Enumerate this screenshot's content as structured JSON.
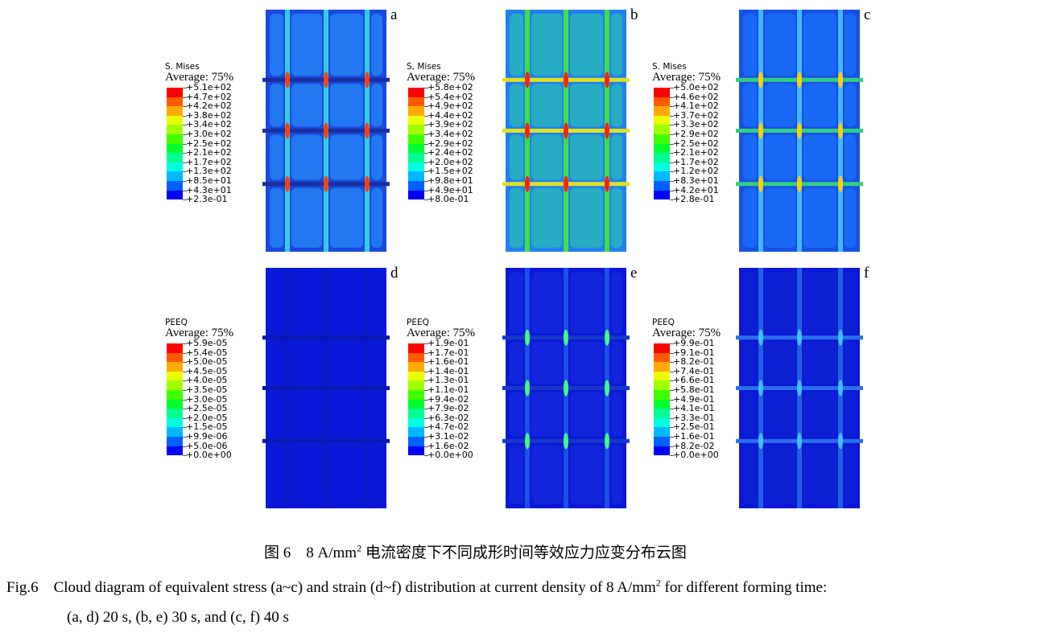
{
  "legend_colors": [
    "#ff0000",
    "#ff5a00",
    "#ffaa00",
    "#e8ff00",
    "#a0ff00",
    "#40ff00",
    "#00ff30",
    "#00ff90",
    "#00ffe0",
    "#00b8ff",
    "#0060ff",
    "#0000ff"
  ],
  "panels": [
    {
      "id": "a",
      "legend_title": "S. Mises",
      "average": "Average: 75%",
      "values": [
        "+5.1e+02",
        "+4.7e+02",
        "+4.2e+02",
        "+3.8e+02",
        "+3.4e+02",
        "+3.0e+02",
        "+2.5e+02",
        "+2.1e+02",
        "+1.7e+02",
        "+1.3e+02",
        "+8.5e+01",
        "+4.3e+01",
        "+2.3e-01"
      ]
    },
    {
      "id": "b",
      "legend_title": "S, Mises",
      "average": "Average: 75%",
      "values": [
        "+5.8e+02",
        "+5.4e+02",
        "+4.9e+02",
        "+4.4e+02",
        "+3.9e+02",
        "+3.4e+02",
        "+2.9e+02",
        "+2.4e+02",
        "+2.0e+02",
        "+1.5e+02",
        "+9.8e+01",
        "+4.9e+01",
        "+8.0e-01"
      ]
    },
    {
      "id": "c",
      "legend_title": "S. Mises",
      "average": "Average: 75%",
      "values": [
        "+5.0e+02",
        "+4.6e+02",
        "+4.1e+02",
        "+3.7e+02",
        "+3.3e+02",
        "+2.9e+02",
        "+2.5e+02",
        "+2.1e+02",
        "+1.7e+02",
        "+1.2e+02",
        "+8.3e+01",
        "+4.2e+01",
        "+2.8e-01"
      ]
    },
    {
      "id": "d",
      "legend_title": "PEEQ",
      "average": "Average: 75%",
      "values": [
        "+5.9e-05",
        "+5.4e-05",
        "+5.0e-05",
        "+4.5e-05",
        "+4.0e-05",
        "+3.5e-05",
        "+3.0e-05",
        "+2.5e-05",
        "+2.0e-05",
        "+1.5e-05",
        "+9.9e-06",
        "+5.0e-06",
        "+0.0e+00"
      ]
    },
    {
      "id": "e",
      "legend_title": "PEEQ",
      "average": "Average: 75%",
      "values": [
        "+1.9e-01",
        "+1.7e-01",
        "+1.6e-01",
        "+1.4e-01",
        "+1.3e-01",
        "+1.1e-01",
        "+9.4e-02",
        "+7.9e-02",
        "+6.3e-02",
        "+4.7e-02",
        "+3.1e-02",
        "+1.6e-02",
        "+0.0e+00"
      ]
    },
    {
      "id": "f",
      "legend_title": "PEEQ",
      "average": "Average: 75%",
      "values": [
        "+9.9e-01",
        "+9.1e-01",
        "+8.2e-01",
        "+7.4e-01",
        "+6.6e-01",
        "+5.8e-01",
        "+4.9e-01",
        "+4.1e-01",
        "+3.3e-01",
        "+2.5e-01",
        "+1.6e-01",
        "+8.2e-02",
        "+0.0e+00"
      ]
    }
  ],
  "caption": {
    "cn_prefix": "图 6　8 A/mm",
    "cn_sup": "2",
    "cn_suffix": " 电流密度下不同成形时间等效应力应变分布云图",
    "en_prefix": "Fig.6　Cloud diagram of equivalent stress (a~c) and strain (d~f) distribution at current density of 8 A/mm",
    "en_sup": "2",
    "en_suffix": " for different forming time:",
    "en_line2": "(a, d) 20 s, (b, e) 30 s, and (c, f) 40 s"
  }
}
